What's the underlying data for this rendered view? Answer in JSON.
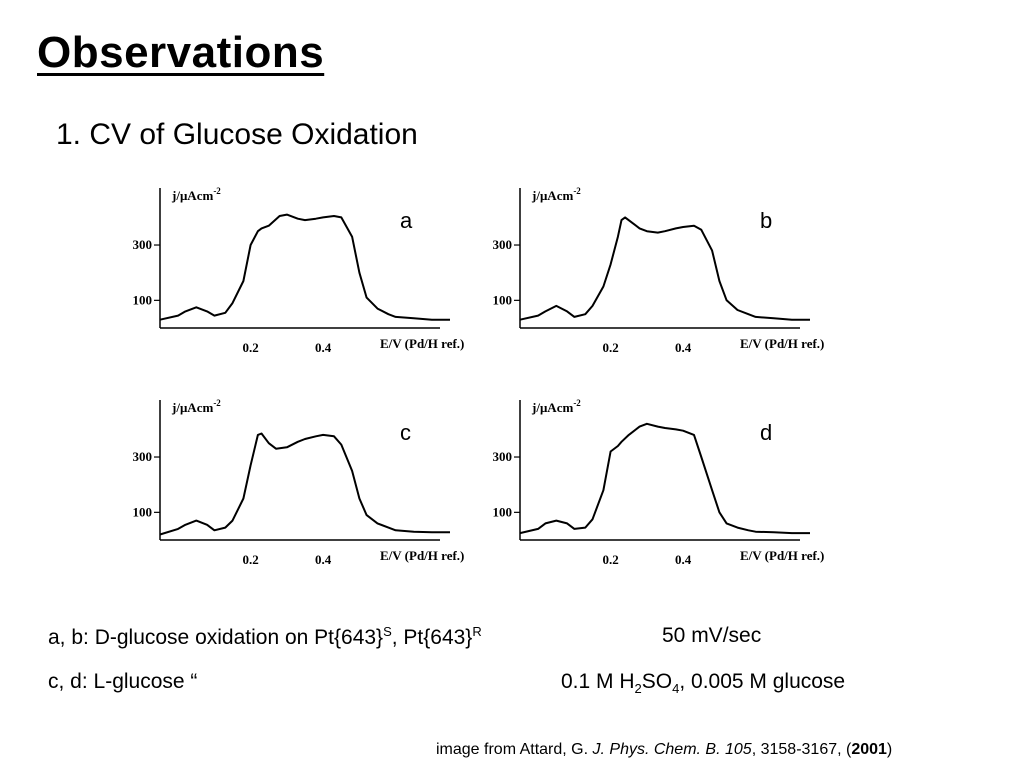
{
  "slide": {
    "title": "Observations",
    "subtitle": "1. CV of Glucose Oxidation"
  },
  "chart_data": [
    {
      "type": "line",
      "panel_label": "a",
      "ylabel": "j/μAcm",
      "ylabel_exp": "-2",
      "xlabel": "E/V (Pd/H ref.)",
      "xticks": [
        "0.2",
        "0.4"
      ],
      "yticks": [
        "100",
        "300"
      ],
      "xlim": [
        -0.05,
        0.75
      ],
      "ylim": [
        0,
        470
      ],
      "series": [
        {
          "x": [
            -0.05,
            0.0,
            0.02,
            0.05,
            0.08,
            0.1,
            0.13,
            0.15,
            0.18,
            0.2,
            0.22,
            0.23,
            0.25,
            0.28,
            0.3,
            0.33,
            0.35,
            0.38,
            0.4,
            0.43,
            0.45,
            0.48,
            0.5,
            0.52,
            0.55,
            0.58,
            0.6,
            0.65,
            0.7,
            0.75
          ],
          "y": [
            30,
            45,
            60,
            75,
            60,
            45,
            55,
            90,
            170,
            300,
            350,
            360,
            370,
            405,
            410,
            395,
            390,
            395,
            400,
            405,
            400,
            330,
            200,
            110,
            70,
            50,
            40,
            35,
            30,
            30
          ]
        }
      ]
    },
    {
      "type": "line",
      "panel_label": "b",
      "ylabel": "j/μAcm",
      "ylabel_exp": "-2",
      "xlabel": "E/V (Pd/H ref.)",
      "xticks": [
        "0.2",
        "0.4"
      ],
      "yticks": [
        "100",
        "300"
      ],
      "xlim": [
        -0.05,
        0.75
      ],
      "ylim": [
        0,
        470
      ],
      "series": [
        {
          "x": [
            -0.05,
            0.0,
            0.02,
            0.05,
            0.08,
            0.1,
            0.13,
            0.15,
            0.18,
            0.2,
            0.22,
            0.23,
            0.24,
            0.26,
            0.28,
            0.3,
            0.33,
            0.35,
            0.38,
            0.4,
            0.43,
            0.45,
            0.48,
            0.5,
            0.52,
            0.55,
            0.58,
            0.6,
            0.65,
            0.7,
            0.75
          ],
          "y": [
            30,
            45,
            60,
            80,
            60,
            40,
            50,
            80,
            150,
            230,
            330,
            390,
            400,
            380,
            360,
            350,
            345,
            350,
            360,
            365,
            370,
            355,
            280,
            170,
            100,
            65,
            50,
            40,
            35,
            30,
            30
          ]
        }
      ]
    },
    {
      "type": "line",
      "panel_label": "c",
      "ylabel": "j/μAcm",
      "ylabel_exp": "-2",
      "xlabel": "E/V (Pd/H ref.)",
      "xticks": [
        "0.2",
        "0.4"
      ],
      "yticks": [
        "100",
        "300"
      ],
      "xlim": [
        -0.05,
        0.75
      ],
      "ylim": [
        0,
        470
      ],
      "series": [
        {
          "x": [
            -0.05,
            0.0,
            0.02,
            0.05,
            0.08,
            0.1,
            0.13,
            0.15,
            0.18,
            0.2,
            0.22,
            0.23,
            0.25,
            0.27,
            0.3,
            0.33,
            0.35,
            0.38,
            0.4,
            0.43,
            0.45,
            0.48,
            0.5,
            0.52,
            0.55,
            0.58,
            0.6,
            0.65,
            0.7,
            0.75
          ],
          "y": [
            20,
            40,
            55,
            70,
            55,
            35,
            45,
            70,
            150,
            270,
            380,
            385,
            350,
            330,
            335,
            355,
            365,
            375,
            380,
            375,
            345,
            250,
            150,
            90,
            60,
            45,
            35,
            30,
            28,
            28
          ]
        }
      ]
    },
    {
      "type": "line",
      "panel_label": "d",
      "ylabel": "j/μAcm",
      "ylabel_exp": "-2",
      "xlabel": "E/V (Pd/H ref.)",
      "xticks": [
        "0.2",
        "0.4"
      ],
      "yticks": [
        "100",
        "300"
      ],
      "xlim": [
        -0.05,
        0.75
      ],
      "ylim": [
        0,
        470
      ],
      "series": [
        {
          "x": [
            -0.05,
            0.0,
            0.02,
            0.05,
            0.08,
            0.1,
            0.13,
            0.15,
            0.18,
            0.2,
            0.22,
            0.23,
            0.25,
            0.28,
            0.3,
            0.33,
            0.35,
            0.38,
            0.4,
            0.43,
            0.45,
            0.48,
            0.5,
            0.52,
            0.55,
            0.58,
            0.6,
            0.65,
            0.7,
            0.75
          ],
          "y": [
            25,
            40,
            60,
            70,
            60,
            40,
            45,
            75,
            180,
            320,
            340,
            355,
            380,
            410,
            420,
            410,
            405,
            400,
            395,
            380,
            300,
            180,
            100,
            60,
            45,
            35,
            30,
            28,
            25,
            25
          ]
        }
      ]
    }
  ],
  "captions": {
    "line1_prefix": "a, b: D-glucose oxidation on Pt{643}",
    "line1_sup1": "S",
    "line1_mid": ", Pt{643}",
    "line1_sup2": "R",
    "rate": "50 mV/sec",
    "line2": "c, d: L-glucose “",
    "solution_prefix": "0.1 M H",
    "sub1": "2",
    "solution_mid": "SO",
    "sub2": "4",
    "solution_suffix": ", 0.005 M glucose"
  },
  "citation": {
    "prefix": "image from Attard, G.  ",
    "journal": "J. Phys. Chem. B.",
    "gap": "  ",
    "volume": "105",
    "pages": ", 3158-3167, (",
    "year": "2001",
    "close": ")"
  }
}
